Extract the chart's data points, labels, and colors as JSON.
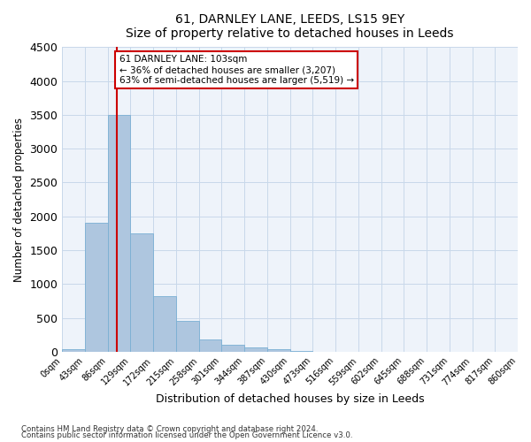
{
  "title": "61, DARNLEY LANE, LEEDS, LS15 9EY",
  "subtitle": "Size of property relative to detached houses in Leeds",
  "xlabel": "Distribution of detached houses by size in Leeds",
  "ylabel": "Number of detached properties",
  "bar_color": "#aec6df",
  "bar_edge_color": "#7aafd4",
  "grid_color": "#c8d8ea",
  "background_color": "#eef3fa",
  "vline_color": "#cc0000",
  "annotation_line1": "61 DARNLEY LANE: 103sqm",
  "annotation_line2": "← 36% of detached houses are smaller (3,207)",
  "annotation_line3": "63% of semi-detached houses are larger (5,519) →",
  "annotation_box_color": "#ffffff",
  "annotation_border_color": "#cc0000",
  "bin_edge_labels": [
    "0sqm",
    "43sqm",
    "86sqm",
    "129sqm",
    "172sqm",
    "215sqm",
    "258sqm",
    "301sqm",
    "344sqm",
    "387sqm",
    "430sqm",
    "473sqm",
    "516sqm",
    "559sqm",
    "602sqm",
    "645sqm",
    "688sqm",
    "731sqm",
    "774sqm",
    "817sqm",
    "860sqm"
  ],
  "bar_values": [
    30,
    1900,
    3500,
    1750,
    820,
    450,
    185,
    100,
    60,
    35,
    10,
    0,
    0,
    0,
    0,
    0,
    0,
    0,
    0,
    0
  ],
  "ylim": [
    0,
    4500
  ],
  "yticks": [
    0,
    500,
    1000,
    1500,
    2000,
    2500,
    3000,
    3500,
    4000,
    4500
  ],
  "footnote1": "Contains HM Land Registry data © Crown copyright and database right 2024.",
  "footnote2": "Contains public sector information licensed under the Open Government Licence v3.0."
}
